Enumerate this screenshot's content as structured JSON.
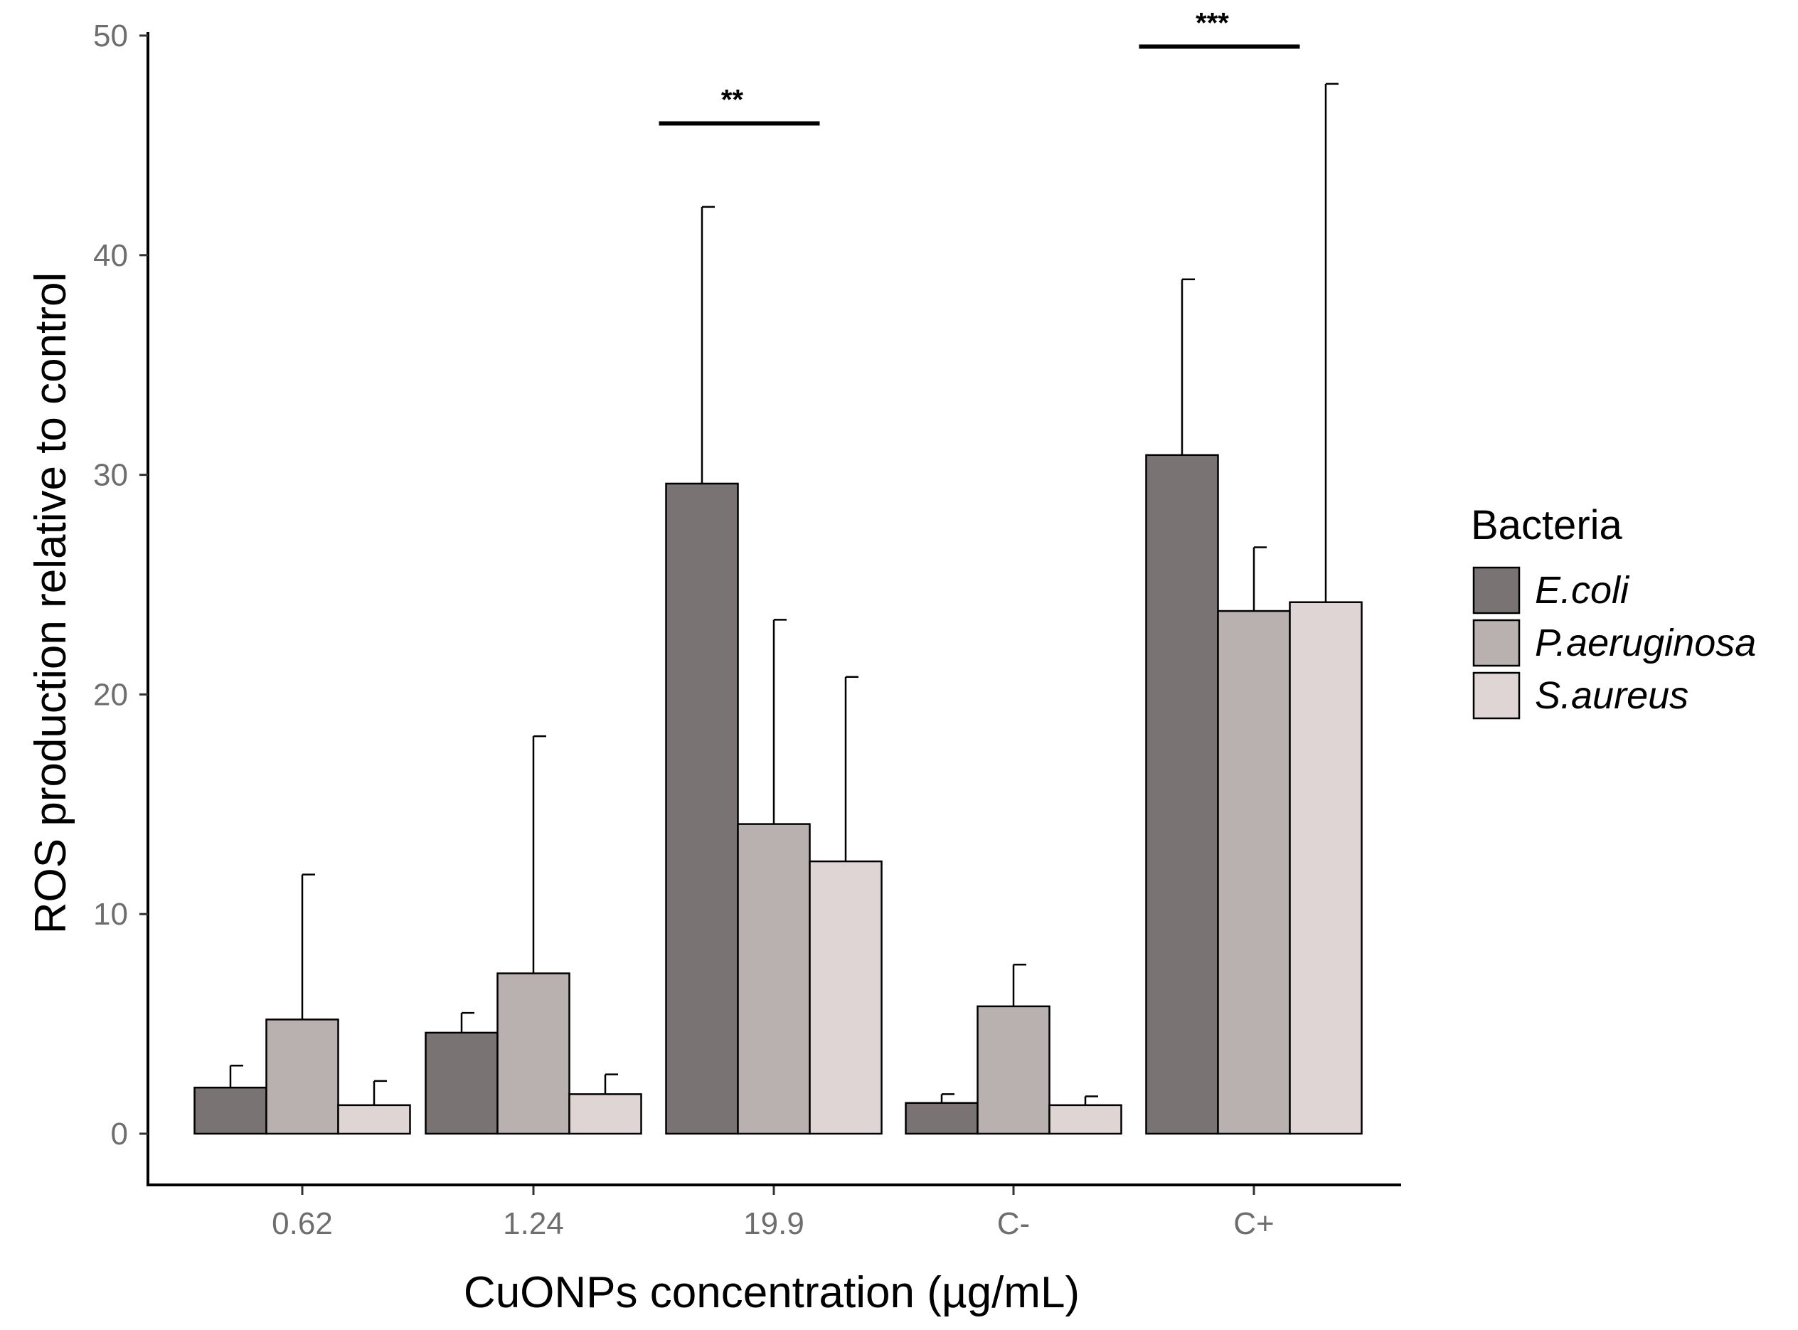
{
  "chart_data": {
    "type": "bar",
    "title": "",
    "xlabel": "CuONPs concentration (µg/mL)",
    "ylabel": "ROS production relative to control",
    "categories": [
      "0.62",
      "1.24",
      "19.9",
      "C-",
      "C+"
    ],
    "ylim": [
      0,
      50
    ],
    "yticks": [
      0,
      10,
      20,
      30,
      40,
      50
    ],
    "legend": {
      "title": "Bacteria",
      "position": "right"
    },
    "grid": false,
    "series": [
      {
        "name": "E.coli",
        "color": "#7a7373",
        "values": [
          2.1,
          4.6,
          29.6,
          1.4,
          30.9
        ],
        "error": [
          1.0,
          0.9,
          12.6,
          0.4,
          8.0
        ]
      },
      {
        "name": "P.aeruginosa",
        "color": "#b9b0b0",
        "values": [
          5.2,
          7.3,
          14.1,
          5.8,
          23.8
        ],
        "error": [
          6.6,
          10.8,
          9.3,
          1.9,
          2.9
        ]
      },
      {
        "name": "S.aureus",
        "color": "#e0d5d5",
        "values": [
          1.3,
          1.8,
          12.4,
          1.3,
          24.2
        ],
        "error": [
          1.1,
          0.9,
          8.4,
          0.4,
          23.6
        ]
      }
    ],
    "annotations": [
      {
        "category": "19.9",
        "text": "**",
        "y": 46
      },
      {
        "category": "C+",
        "text": "***",
        "y": 49.5
      }
    ]
  }
}
